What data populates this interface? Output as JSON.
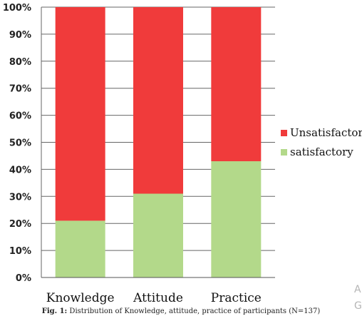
{
  "chart_data": {
    "type": "bar",
    "stacked": true,
    "categories": [
      "Knowledge",
      "Attitude",
      "Practice"
    ],
    "series": [
      {
        "name": "satisfactory",
        "values": [
          21,
          31,
          43
        ],
        "color": "#b3d98a"
      },
      {
        "name": "Unsatisfactory",
        "values": [
          79,
          69,
          57
        ],
        "color": "#f03b3b"
      }
    ],
    "ylim": [
      0,
      100
    ],
    "yticks": [
      "0%",
      "10%",
      "20%",
      "30%",
      "40%",
      "50%",
      "60%",
      "70%",
      "80%",
      "90%",
      "100%"
    ],
    "grid": true,
    "legend_position": "right",
    "legend_order": [
      "Unsatisfactory",
      "satisfactory"
    ],
    "xlabel": "",
    "ylabel": ""
  },
  "caption": {
    "label": "Fig. 1:",
    "text": " Distribution of Knowledge, attitude, practice of participants (N=137)"
  },
  "side_marks": [
    "A",
    "G"
  ]
}
